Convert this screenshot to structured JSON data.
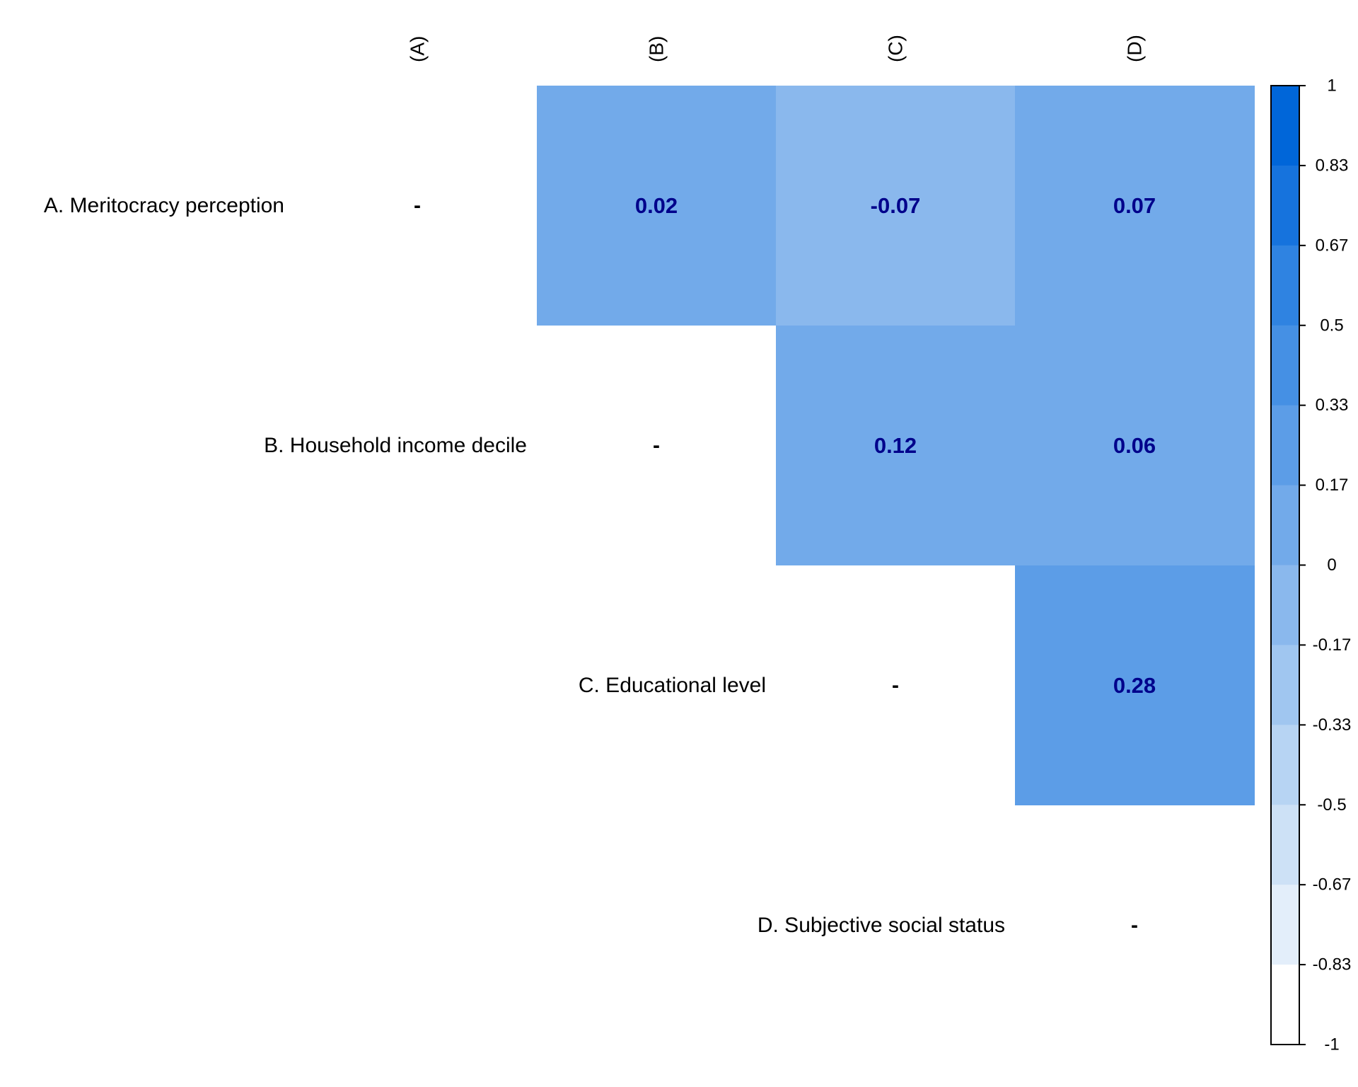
{
  "chart_data": {
    "type": "heatmap",
    "title": "",
    "column_labels": [
      "(A)",
      "(B)",
      "(C)",
      "(D)"
    ],
    "row_labels": [
      "A. Meritocracy perception",
      "B. Household income decile",
      "C. Educational level",
      "D. Subjective social status"
    ],
    "diagonal_label": "-",
    "cells": [
      {
        "row": 0,
        "col": 1,
        "value": 0.02,
        "label": "0.02"
      },
      {
        "row": 0,
        "col": 2,
        "value": -0.07,
        "label": "-0.07"
      },
      {
        "row": 0,
        "col": 3,
        "value": 0.07,
        "label": "0.07"
      },
      {
        "row": 1,
        "col": 2,
        "value": 0.12,
        "label": "0.12"
      },
      {
        "row": 1,
        "col": 3,
        "value": 0.06,
        "label": "0.06"
      },
      {
        "row": 2,
        "col": 3,
        "value": 0.28,
        "label": "0.28"
      }
    ],
    "colorbar": {
      "range": [
        -1,
        1
      ],
      "ticks": [
        "1",
        "0.83",
        "0.67",
        "0.5",
        "0.33",
        "0.17",
        "0",
        "-0.17",
        "-0.33",
        "-0.5",
        "-0.67",
        "-0.83",
        "-1"
      ],
      "colors_top_to_bottom": [
        "#0066d9",
        "#1673dd",
        "#2f83e1",
        "#4590e4",
        "#5c9de7",
        "#72aaea",
        "#8ab8ed",
        "#a0c6f0",
        "#b7d4f3",
        "#cde1f6",
        "#e3eefa",
        "#ffffff"
      ]
    },
    "label_color": "#00008b",
    "legend_position": "right"
  }
}
